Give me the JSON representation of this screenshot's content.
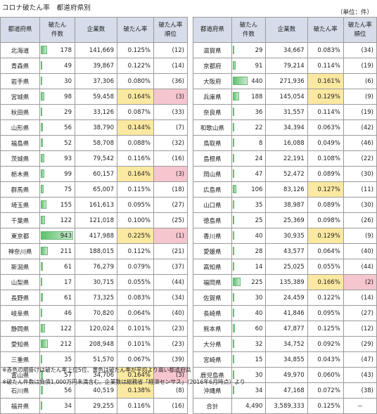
{
  "title": "コロナ破たん率　都道府県別",
  "unit": "（単位：件）",
  "headers": [
    "都道府県",
    "破たん件数",
    "企業数",
    "破たん率",
    "破たん率順位"
  ],
  "left_rows": [
    {
      "pref": "北海道",
      "count": "178",
      "companies": "141,669",
      "rate": "0.125%",
      "rank": "(12)"
    },
    {
      "pref": "青森県",
      "count": "49",
      "companies": "39,867",
      "rate": "0.122%",
      "rank": "(14)"
    },
    {
      "pref": "岩手県",
      "count": "30",
      "companies": "37,306",
      "rate": "0.080%",
      "rank": "(36)"
    },
    {
      "pref": "宮城県",
      "count": "98",
      "companies": "59,458",
      "rate": "0.164%",
      "rank": "(3)",
      "hl_rate": true,
      "hl_rank": true
    },
    {
      "pref": "秋田県",
      "count": "29",
      "companies": "33,126",
      "rate": "0.087%",
      "rank": "(33)"
    },
    {
      "pref": "山形県",
      "count": "56",
      "companies": "38,790",
      "rate": "0.144%",
      "rank": "(7)",
      "hl_rate": true
    },
    {
      "pref": "福島県",
      "count": "52",
      "companies": "58,708",
      "rate": "0.088%",
      "rank": "(32)"
    },
    {
      "pref": "茨城県",
      "count": "93",
      "companies": "79,542",
      "rate": "0.116%",
      "rank": "(16)"
    },
    {
      "pref": "栃木県",
      "count": "99",
      "companies": "60,157",
      "rate": "0.164%",
      "rank": "(3)",
      "hl_rate": true,
      "hl_rank": true
    },
    {
      "pref": "群馬県",
      "count": "75",
      "companies": "65,007",
      "rate": "0.115%",
      "rank": "(18)"
    },
    {
      "pref": "埼玉県",
      "count": "155",
      "companies": "161,613",
      "rate": "0.095%",
      "rank": "(27)"
    },
    {
      "pref": "千葉県",
      "count": "122",
      "companies": "121,018",
      "rate": "0.100%",
      "rank": "(25)"
    },
    {
      "pref": "東京都",
      "count": "943",
      "companies": "417,988",
      "rate": "0.225%",
      "rank": "(1)",
      "hl_rate": true,
      "hl_rank": true
    },
    {
      "pref": "神奈川県",
      "count": "211",
      "companies": "188,015",
      "rate": "0.112%",
      "rank": "(21)"
    },
    {
      "pref": "新潟県",
      "count": "61",
      "companies": "76,279",
      "rate": "0.079%",
      "rank": "(37)"
    },
    {
      "pref": "山梨県",
      "count": "17",
      "companies": "30,715",
      "rate": "0.055%",
      "rank": "(44)"
    },
    {
      "pref": "長野県",
      "count": "61",
      "companies": "73,325",
      "rate": "0.083%",
      "rank": "(34)"
    },
    {
      "pref": "岐阜県",
      "count": "46",
      "companies": "70,820",
      "rate": "0.064%",
      "rank": "(40)"
    },
    {
      "pref": "静岡県",
      "count": "122",
      "companies": "120,024",
      "rate": "0.101%",
      "rank": "(23)"
    },
    {
      "pref": "愛知県",
      "count": "212",
      "companies": "208,948",
      "rate": "0.101%",
      "rank": "(23)"
    },
    {
      "pref": "三重県",
      "count": "35",
      "companies": "51,570",
      "rate": "0.067%",
      "rank": "(39)"
    },
    {
      "pref": "富山県",
      "count": "57",
      "companies": "34,706",
      "rate": "0.164%",
      "rank": "(3)",
      "hl_rate": true,
      "hl_rank": true
    },
    {
      "pref": "石川県",
      "count": "56",
      "companies": "40,519",
      "rate": "0.138%",
      "rank": "(8)",
      "hl_rate": true
    },
    {
      "pref": "福井県",
      "count": "34",
      "companies": "29,255",
      "rate": "0.116%",
      "rank": "(16)"
    }
  ],
  "right_rows": [
    {
      "pref": "滋賀県",
      "count": "29",
      "companies": "34,667",
      "rate": "0.083%",
      "rank": "(34)"
    },
    {
      "pref": "京都府",
      "count": "91",
      "companies": "79,214",
      "rate": "0.114%",
      "rank": "(19)"
    },
    {
      "pref": "大阪府",
      "count": "440",
      "companies": "271,936",
      "rate": "0.161%",
      "rank": "(6)",
      "hl_rate": true
    },
    {
      "pref": "兵庫県",
      "count": "188",
      "companies": "145,054",
      "rate": "0.129%",
      "rank": "(9)",
      "hl_rate": true
    },
    {
      "pref": "奈良県",
      "count": "36",
      "companies": "31,557",
      "rate": "0.114%",
      "rank": "(19)"
    },
    {
      "pref": "和歌山県",
      "count": "22",
      "companies": "34,394",
      "rate": "0.063%",
      "rank": "(42)"
    },
    {
      "pref": "鳥取県",
      "count": "8",
      "companies": "16,088",
      "rate": "0.049%",
      "rank": "(46)"
    },
    {
      "pref": "島根県",
      "count": "24",
      "companies": "22,191",
      "rate": "0.108%",
      "rank": "(22)"
    },
    {
      "pref": "岡山県",
      "count": "47",
      "companies": "52,472",
      "rate": "0.089%",
      "rank": "(30)"
    },
    {
      "pref": "広島県",
      "count": "106",
      "companies": "83,126",
      "rate": "0.127%",
      "rank": "(11)",
      "hl_rate": true
    },
    {
      "pref": "山口県",
      "count": "35",
      "companies": "38,987",
      "rate": "0.089%",
      "rank": "(30)"
    },
    {
      "pref": "徳島県",
      "count": "25",
      "companies": "25,369",
      "rate": "0.098%",
      "rank": "(26)"
    },
    {
      "pref": "香川県",
      "count": "40",
      "companies": "30,935",
      "rate": "0.129%",
      "rank": "(9)",
      "hl_rate": true
    },
    {
      "pref": "愛媛県",
      "count": "28",
      "companies": "43,577",
      "rate": "0.064%",
      "rank": "(40)"
    },
    {
      "pref": "高知県",
      "count": "14",
      "companies": "25,025",
      "rate": "0.055%",
      "rank": "(44)"
    },
    {
      "pref": "福岡県",
      "count": "225",
      "companies": "135,389",
      "rate": "0.166%",
      "rank": "(2)",
      "hl_rate": true,
      "hl_rank": true
    },
    {
      "pref": "佐賀県",
      "count": "30",
      "companies": "24,459",
      "rate": "0.122%",
      "rank": "(14)"
    },
    {
      "pref": "長崎県",
      "count": "40",
      "companies": "41,846",
      "rate": "0.095%",
      "rank": "(27)"
    },
    {
      "pref": "熊本県",
      "count": "60",
      "companies": "47,877",
      "rate": "0.125%",
      "rank": "(12)"
    },
    {
      "pref": "大分県",
      "count": "32",
      "companies": "34,752",
      "rate": "0.092%",
      "rank": "(29)"
    },
    {
      "pref": "宮崎県",
      "count": "15",
      "companies": "34,855",
      "rate": "0.043%",
      "rank": "(47)"
    },
    {
      "pref": "鹿児島県",
      "count": "30",
      "companies": "49,970",
      "rate": "0.060%",
      "rank": "(43)"
    },
    {
      "pref": "沖縄県",
      "count": "34",
      "companies": "47,168",
      "rate": "0.072%",
      "rank": "(38)"
    }
  ],
  "total": {
    "label": "合計",
    "count": "4,490",
    "companies": "3,589,333",
    "rate": "0.125%",
    "rank": "－"
  },
  "notes": [
    "※赤色の網掛けは破たん率上位5位、黄色は破たん率が平均より高い都道府県",
    "※破たん件数は負債1,000万円未満含む。企業数は総務省「経済センサス」（2016年6月時点）より"
  ],
  "colors": {
    "header_bg": "#d6dcea",
    "rate_highlight": "#fbe9a1",
    "rank_highlight": "#f6c6cf",
    "bar": "#5ec16c"
  }
}
